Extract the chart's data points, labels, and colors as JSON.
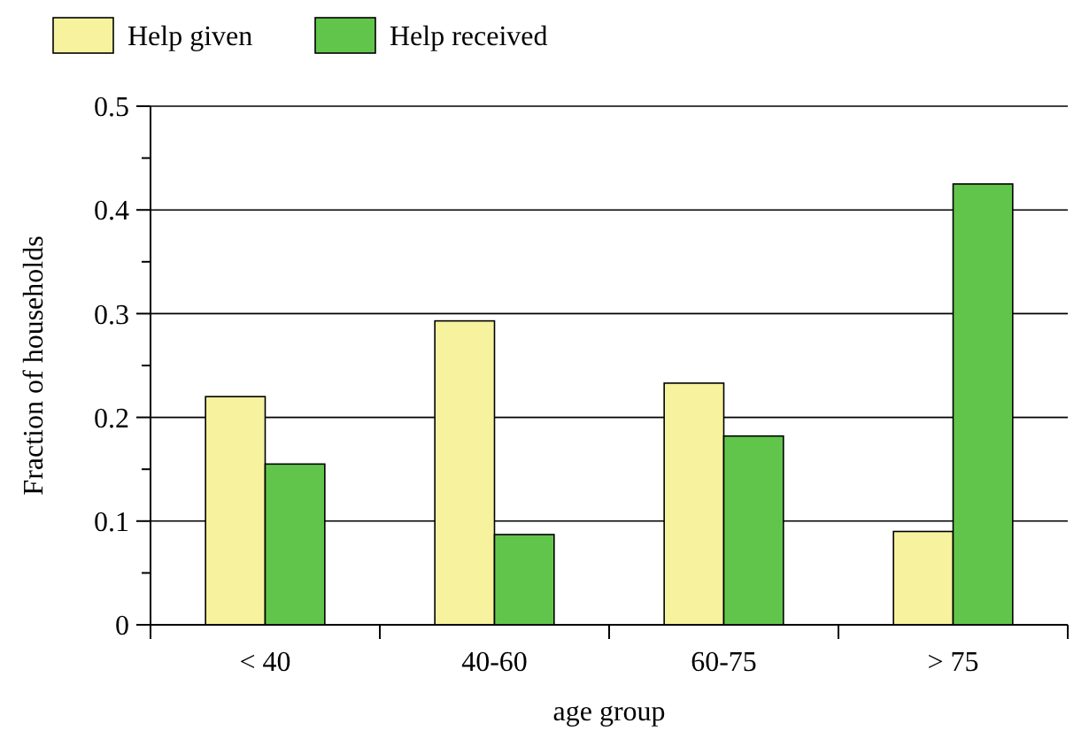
{
  "chart_data": {
    "type": "bar",
    "xlabel": "age group",
    "ylabel": "Fraction of households",
    "categories": [
      "< 40",
      "40-60",
      "60-75",
      "> 75"
    ],
    "series": [
      {
        "name": "Help given",
        "color": "#f7f29e",
        "values": [
          0.22,
          0.293,
          0.233,
          0.09
        ]
      },
      {
        "name": "Help received",
        "color": "#62c54b",
        "values": [
          0.155,
          0.087,
          0.182,
          0.425
        ]
      }
    ],
    "ylim": [
      0,
      0.5
    ],
    "yticks": [
      0,
      {
        "value": 0.05,
        "label": null
      },
      0.1,
      {
        "value": 0.15,
        "label": null
      },
      0.2,
      {
        "value": 0.25,
        "label": null
      },
      0.3,
      {
        "value": 0.35,
        "label": null
      },
      0.4,
      {
        "value": 0.45,
        "label": null
      },
      0.5
    ],
    "grid": "y",
    "legend": "top left"
  }
}
